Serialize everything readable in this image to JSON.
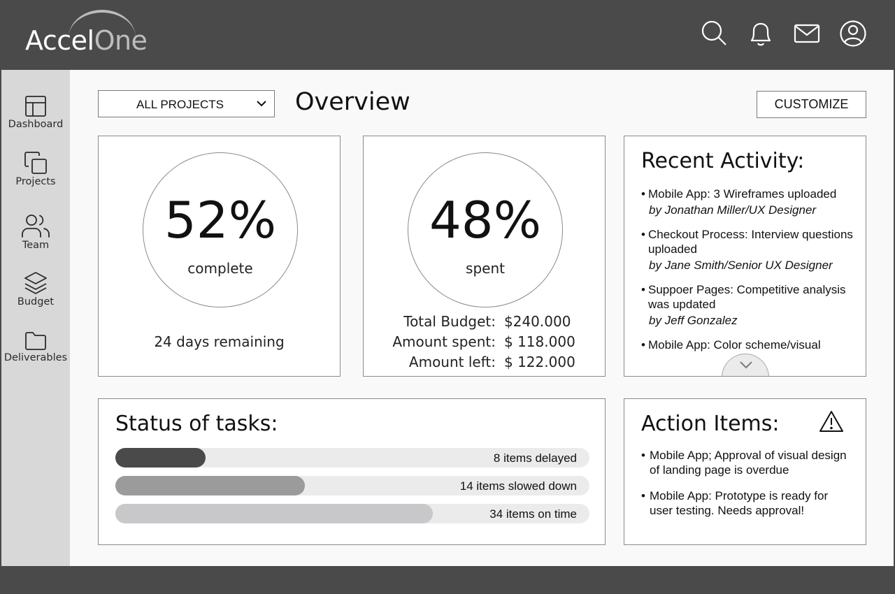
{
  "app": {
    "logo_primary": "Accel",
    "logo_secondary": "One"
  },
  "header": {
    "icons": [
      "search-icon",
      "bell-icon",
      "mail-icon",
      "user-icon"
    ]
  },
  "sidebar": {
    "items": [
      {
        "label": "Dashboard",
        "icon": "layout-icon"
      },
      {
        "label": "Projects",
        "icon": "copy-icon"
      },
      {
        "label": "Team",
        "icon": "users-icon"
      },
      {
        "label": "Budget",
        "icon": "layers-icon"
      },
      {
        "label": "Deliverables",
        "icon": "folder-icon"
      }
    ]
  },
  "toolbar": {
    "project_select": "ALL PROJECTS",
    "title": "Overview",
    "customize_label": "CUSTOMIZE"
  },
  "progress_card": {
    "value": "52%",
    "label": "complete",
    "remaining": "24 days remaining"
  },
  "budget_card": {
    "value": "48%",
    "label": "spent",
    "rows": [
      {
        "label": "Total Budget:",
        "value": "$240.000"
      },
      {
        "label": "Amount spent:",
        "value": "$ 118.000"
      },
      {
        "label": "Amount left:",
        "value": "$ 122.000"
      }
    ]
  },
  "activity_card": {
    "title": "Recent Activity:",
    "items": [
      {
        "text": "Mobile App: 3 Wireframes uploaded",
        "byline": "by Jonathan Miller/UX Designer"
      },
      {
        "text": "Checkout Process: Interview questions uploaded",
        "byline": "by Jane Smith/Senior UX Designer"
      },
      {
        "text": "Suppoer Pages: Competitive analysis was updated",
        "byline": "by Jeff Gonzalez"
      },
      {
        "text": "Mobile App: Color scheme/visual",
        "byline": ""
      }
    ]
  },
  "status_card": {
    "title": "Status of tasks:",
    "bars": [
      {
        "label": "8 items delayed",
        "fraction": 0.19,
        "color": "#4a4a4a"
      },
      {
        "label": "14 items slowed down",
        "fraction": 0.4,
        "color": "#9b9b9b"
      },
      {
        "label": "34 items on time",
        "fraction": 0.67,
        "color": "#c8c8ca"
      }
    ]
  },
  "action_card": {
    "title": "Action Items:",
    "items": [
      {
        "text": "Mobile App; Approval of visual design of landing page is overdue"
      },
      {
        "text": "Mobile App: Prototype is ready for user testing. Needs approval!"
      }
    ]
  },
  "colors": {
    "chrome": "#4a4a4a",
    "sidebar": "#d8d8d8",
    "content": "#faf9f9"
  }
}
